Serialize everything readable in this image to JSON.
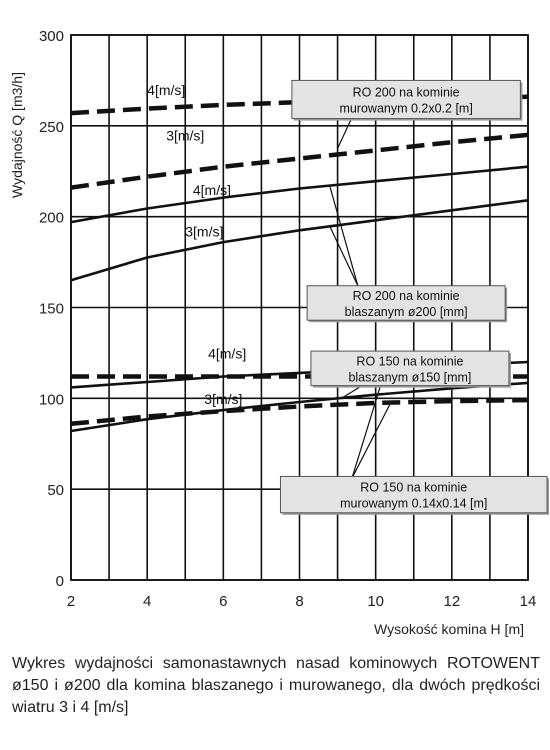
{
  "chart_data": {
    "type": "line",
    "xlabel": "Wysokość komina H [m]",
    "ylabel": "Wydajność Q [m3/h]",
    "xlim": [
      2,
      14
    ],
    "ylim": [
      0,
      300
    ],
    "x_ticks": [
      2,
      4,
      6,
      8,
      10,
      12,
      14
    ],
    "y_ticks": [
      0,
      50,
      100,
      150,
      200,
      250,
      300
    ],
    "y_tick_labels": [
      "0",
      "50",
      "100",
      "150",
      "200",
      "250",
      "300"
    ],
    "grid": true,
    "series": [
      {
        "label": "RO 200 na kominie murowanym 0.2x0.2 [m], 4[m/s]",
        "style": "dashed",
        "x": [
          2,
          4,
          6,
          8,
          10,
          12,
          14
        ],
        "y": [
          257,
          259.5,
          261.5,
          263,
          264,
          265,
          266
        ]
      },
      {
        "label": "RO 200 na kominie murowanym 0.2x0.2 [m], 3[m/s]",
        "style": "dashed",
        "x": [
          2,
          4,
          6,
          8,
          10,
          12,
          14
        ],
        "y": [
          216,
          222,
          227.5,
          232,
          236.5,
          241,
          245
        ]
      },
      {
        "label": "RO 200 na kominie blaszanym ø200 [mm], 4[m/s]",
        "style": "solid",
        "x": [
          2,
          4,
          6,
          8,
          10,
          12,
          14
        ],
        "y": [
          197,
          204.5,
          210.5,
          215.5,
          219.5,
          223.5,
          227.5
        ]
      },
      {
        "label": "RO 200 na kominie blaszanym ø200 [mm], 3[m/s]",
        "style": "solid",
        "x": [
          2,
          4,
          6,
          8,
          10,
          12,
          14
        ],
        "y": [
          165,
          177.5,
          186,
          192.5,
          198,
          203.5,
          209
        ]
      },
      {
        "label": "RO 150 na kominie blaszanym ø150 [mm], 4[m/s]",
        "style": "solid",
        "x": [
          2,
          4,
          6,
          8,
          10,
          12,
          14
        ],
        "y": [
          106,
          109,
          112,
          114,
          116,
          118,
          120
        ]
      },
      {
        "label": "RO 150 na kominie murowanym 0.14x0.14 [m], 4[m/s]",
        "style": "dashed",
        "x": [
          2,
          4,
          6,
          8,
          10,
          12,
          14
        ],
        "y": [
          112,
          112,
          112,
          112,
          112,
          112,
          112
        ]
      },
      {
        "label": "RO 150 na kominie blaszanym ø150 [mm], 3[m/s]",
        "style": "solid",
        "x": [
          2,
          4,
          6,
          8,
          10,
          12,
          14
        ],
        "y": [
          82,
          88.5,
          93.5,
          98,
          102,
          105.5,
          108.5
        ]
      },
      {
        "label": "RO 150 na kominie murowanym 0.14x0.14 [m], 3[m/s]",
        "style": "dashed",
        "x": [
          2,
          4,
          6,
          8,
          10,
          12,
          14
        ],
        "y": [
          86,
          90,
          93,
          95.5,
          97.5,
          98.5,
          99
        ]
      }
    ],
    "curve_labels": [
      {
        "text": "4[m/s]",
        "x": 4.0,
        "y": 267
      },
      {
        "text": "3[m/s]",
        "x": 4.5,
        "y": 242
      },
      {
        "text": "4[m/s]",
        "x": 5.2,
        "y": 212
      },
      {
        "text": "3[m/s]",
        "x": 5.0,
        "y": 189
      },
      {
        "text": "4[m/s]",
        "x": 5.6,
        "y": 122
      },
      {
        "text": "3[m/s]",
        "x": 5.5,
        "y": 97
      }
    ],
    "annotations": [
      {
        "lines": [
          "RO 200 na kominie",
          "murowanym 0.2x0.2 [m]"
        ],
        "box": {
          "x": 7.8,
          "y": 275,
          "w": 6.0,
          "h": 21
        },
        "pointers": [
          {
            "x": 9.2,
            "y": 265
          },
          {
            "x": 9.0,
            "y": 237.5
          }
        ]
      },
      {
        "lines": [
          "RO 200 na kominie",
          "blaszanym ø200 [mm]"
        ],
        "box": {
          "x": 8.2,
          "y": 162,
          "w": 5.2,
          "h": 19
        },
        "pointers": [
          {
            "x": 8.8,
            "y": 216.5
          },
          {
            "x": 8.8,
            "y": 194.5
          }
        ]
      },
      {
        "lines": [
          "RO 150 na kominie",
          "blaszanym ø150 [mm]"
        ],
        "box": {
          "x": 8.3,
          "y": 126,
          "w": 5.2,
          "h": 19
        },
        "pointers": [
          {
            "x": 9.5,
            "y": 115
          },
          {
            "x": 9.1,
            "y": 100
          }
        ]
      },
      {
        "lines": [
          "RO 150 na kominie",
          "murowanym 0.14x0.14 [m]"
        ],
        "box": {
          "x": 7.5,
          "y": 57,
          "w": 7.0,
          "h": 20
        },
        "pointers": [
          {
            "x": 10.2,
            "y": 112
          },
          {
            "x": 10.4,
            "y": 97.8
          }
        ]
      }
    ]
  },
  "caption": "Wykres wydajności samonastawnych nasad kominowych ROTOWENT ø150 i ø200 dla komina blaszanego i murowanego, dla dwóch prędkości wiatru 3 i 4 [m/s]"
}
